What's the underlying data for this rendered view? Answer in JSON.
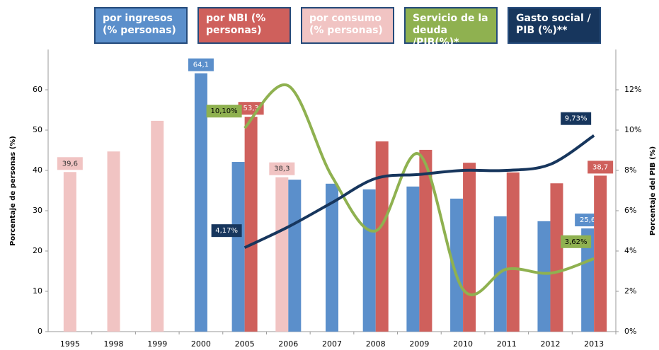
{
  "chart_data": {
    "type": "bar",
    "categories": [
      "1995",
      "1998",
      "1999",
      "2000",
      "2005",
      "2006",
      "2007",
      "2008",
      "2009",
      "2010",
      "2011",
      "2012",
      "2013"
    ],
    "y_label": "Porcentaje de personas (%)",
    "y2_label": "Porcentaje del PIB (%)",
    "ylim": [
      0,
      70
    ],
    "yticks": [
      0,
      10,
      20,
      30,
      40,
      50,
      60
    ],
    "y2lim": [
      0,
      14
    ],
    "y2ticks": [
      {
        "value": 0,
        "label": "0%"
      },
      {
        "value": 2,
        "label": "2%"
      },
      {
        "value": 4,
        "label": "4%"
      },
      {
        "value": 6,
        "label": "6%"
      },
      {
        "value": 8,
        "label": "8%"
      },
      {
        "value": 10,
        "label": "10%"
      },
      {
        "value": 12,
        "label": "12%"
      }
    ],
    "series": [
      {
        "name": "por ingresos (% personas)",
        "color": "#5b8fcb",
        "type": "bar",
        "values": [
          null,
          null,
          null,
          64.1,
          42.1,
          37.7,
          36.7,
          35.3,
          36,
          33,
          28.6,
          27.4,
          25.6
        ],
        "value_labels": [
          null,
          null,
          null,
          "64,1",
          null,
          null,
          null,
          null,
          null,
          null,
          null,
          null,
          "25,6"
        ]
      },
      {
        "name": "por NBI (% personas)",
        "color": "#cf605c",
        "type": "bar",
        "values": [
          null,
          null,
          null,
          null,
          53.3,
          null,
          null,
          47.2,
          45.1,
          41.9,
          39.5,
          36.8,
          38.7
        ],
        "value_labels": [
          null,
          null,
          null,
          null,
          "53,3",
          null,
          null,
          null,
          null,
          null,
          null,
          null,
          "38,7"
        ]
      },
      {
        "name": "por consumo (% personas)",
        "color": "#f1c4c3",
        "type": "bar",
        "values": [
          39.6,
          44.7,
          52.3,
          null,
          null,
          38.3,
          null,
          null,
          null,
          null,
          null,
          null,
          null
        ],
        "value_labels": [
          "39,6",
          null,
          null,
          null,
          null,
          "38,3",
          null,
          null,
          null,
          null,
          null,
          null,
          null
        ]
      },
      {
        "name": "Servicio de la deuda /PIB(%)*",
        "color": "#8fb150",
        "type": "line",
        "axis": "y2",
        "values": [
          null,
          null,
          null,
          null,
          10.1,
          12.2,
          7.7,
          5.0,
          8.8,
          2.1,
          3.1,
          2.9,
          3.62
        ],
        "value_labels": [
          null,
          null,
          null,
          null,
          "10,10%",
          null,
          null,
          null,
          null,
          null,
          null,
          null,
          "3,62%"
        ]
      },
      {
        "name": "Gasto social / PIB (%)**",
        "color": "#17365d",
        "type": "line",
        "axis": "y2",
        "values": [
          null,
          null,
          null,
          null,
          4.17,
          5.2,
          6.4,
          7.6,
          7.8,
          8.0,
          8.0,
          8.3,
          9.73
        ],
        "value_labels": [
          null,
          null,
          null,
          null,
          "4,17%",
          null,
          null,
          null,
          null,
          null,
          null,
          null,
          "9,73%"
        ]
      }
    ]
  }
}
